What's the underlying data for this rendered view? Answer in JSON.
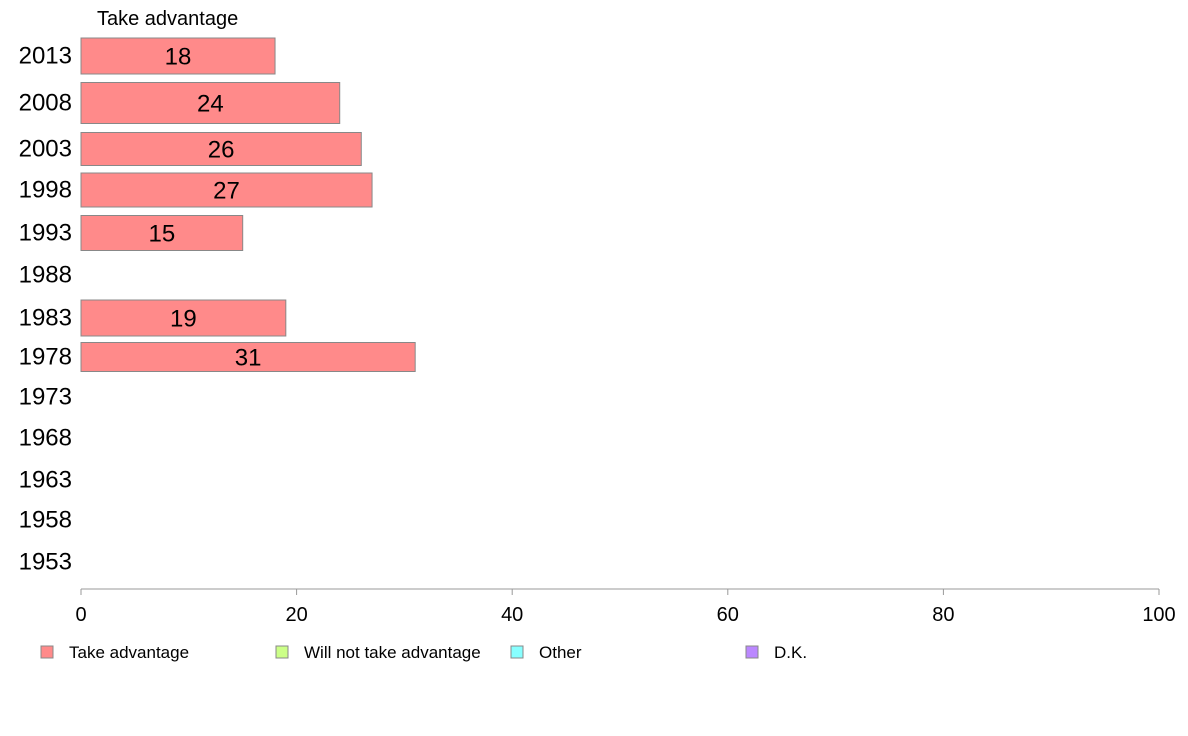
{
  "chart_data": {
    "type": "bar",
    "orientation": "horizontal",
    "series_title": "Take advantage",
    "categories": [
      "2013",
      "2008",
      "2003",
      "1998",
      "1993",
      "1988",
      "1983",
      "1978",
      "1973",
      "1968",
      "1963",
      "1958",
      "1953"
    ],
    "series": [
      {
        "name": "Take advantage",
        "values": [
          18,
          24,
          26,
          27,
          15,
          null,
          19,
          31,
          null,
          null,
          null,
          null,
          null
        ]
      }
    ],
    "xlim": [
      0,
      100
    ],
    "xticks": [
      0,
      20,
      40,
      60,
      80,
      100
    ],
    "legend": [
      {
        "label": "Take advantage",
        "color": "#ff8a8a"
      },
      {
        "label": "Will not take advantage",
        "color": "#ccff88"
      },
      {
        "label": "Other",
        "color": "#88ffff"
      },
      {
        "label": "D.K.",
        "color": "#bb88ff"
      }
    ],
    "legend_position": "bottom",
    "grid": false,
    "bar_color": "#ff8a8a",
    "bar_stroke": "#888888"
  }
}
